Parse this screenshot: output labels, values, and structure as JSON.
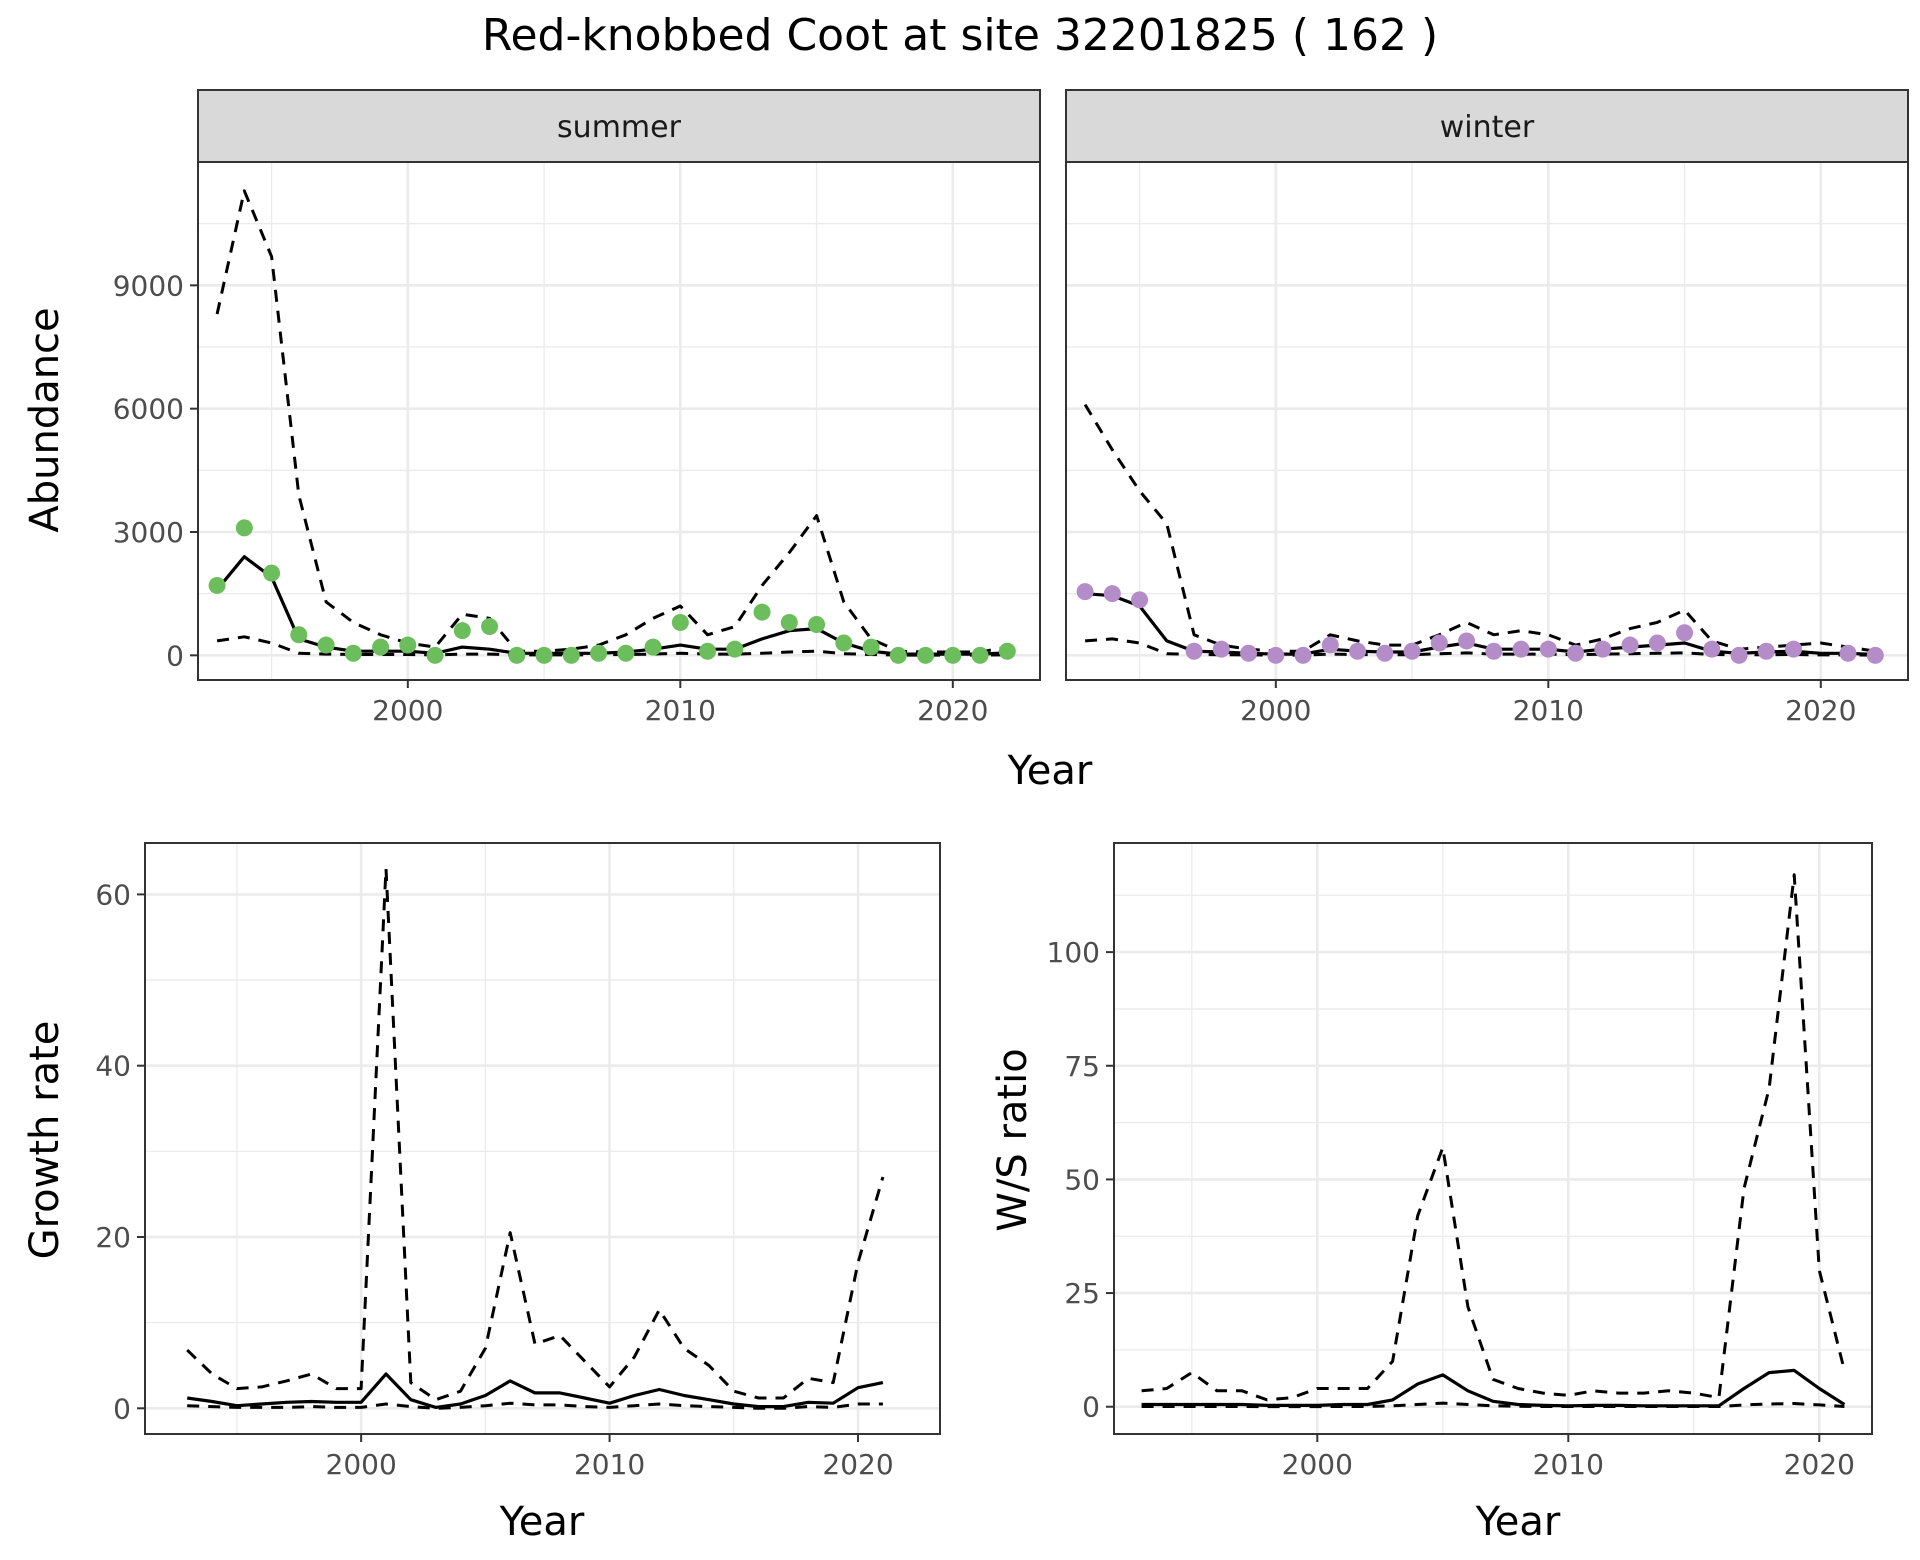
{
  "title": "Red-knobbed Coot at site 32201825 ( 162 )",
  "colors": {
    "summer": "#6BBE5B",
    "winter": "#B48CC8",
    "line": "#000000",
    "strip": "#D9D9D9"
  },
  "chart_data": [
    {
      "type": "line",
      "panel": "summer",
      "facet_label": "summer",
      "xlabel": "Year",
      "ylabel": "Abundance",
      "xlim": [
        1992.3,
        2023.2
      ],
      "ylim": [
        -600,
        12000
      ],
      "xticks": [
        2000,
        2010,
        2020
      ],
      "yticks": [
        0,
        3000,
        6000,
        9000
      ],
      "grid": true,
      "points": {
        "x": [
          1993,
          1994,
          1995,
          1996,
          1997,
          1998,
          1999,
          2000,
          2001,
          2002,
          2003,
          2004,
          2005,
          2006,
          2007,
          2008,
          2009,
          2010,
          2011,
          2012,
          2013,
          2014,
          2015,
          2016,
          2017,
          2018,
          2019,
          2020,
          2021,
          2022
        ],
        "y": [
          1700,
          3100,
          2000,
          500,
          250,
          50,
          200,
          250,
          0,
          600,
          700,
          0,
          0,
          0,
          50,
          50,
          200,
          800,
          100,
          150,
          1050,
          800,
          750,
          300,
          200,
          0,
          0,
          0,
          0,
          100
        ]
      },
      "series": [
        {
          "style": "solid",
          "x": [
            1993,
            1994,
            1995,
            1996,
            1997,
            1998,
            1999,
            2000,
            2001,
            2002,
            2003,
            2004,
            2005,
            2006,
            2007,
            2008,
            2009,
            2010,
            2011,
            2012,
            2013,
            2014,
            2015,
            2016,
            2017,
            2018,
            2019,
            2020,
            2021,
            2022
          ],
          "values": [
            1600,
            2400,
            1900,
            400,
            200,
            100,
            100,
            100,
            50,
            200,
            150,
            50,
            50,
            50,
            50,
            80,
            150,
            250,
            150,
            150,
            400,
            600,
            650,
            300,
            100,
            30,
            30,
            30,
            30,
            60
          ]
        },
        {
          "style": "dashed",
          "x": [
            1993,
            1994,
            1995,
            1996,
            1997,
            1998,
            1999,
            2000,
            2001,
            2002,
            2003,
            2004,
            2005,
            2006,
            2007,
            2008,
            2009,
            2010,
            2011,
            2012,
            2013,
            2014,
            2015,
            2016,
            2017,
            2018,
            2019,
            2020,
            2021,
            2022
          ],
          "values": [
            8300,
            11300,
            9700,
            3900,
            1300,
            800,
            500,
            300,
            200,
            1000,
            900,
            100,
            100,
            150,
            250,
            500,
            900,
            1200,
            500,
            700,
            1700,
            2500,
            3400,
            1300,
            400,
            100,
            80,
            80,
            80,
            200
          ]
        },
        {
          "style": "dashed",
          "x": [
            1993,
            1994,
            1995,
            1996,
            1997,
            1998,
            1999,
            2000,
            2001,
            2002,
            2003,
            2004,
            2005,
            2006,
            2007,
            2008,
            2009,
            2010,
            2011,
            2012,
            2013,
            2014,
            2015,
            2016,
            2017,
            2018,
            2019,
            2020,
            2021,
            2022
          ],
          "values": [
            350,
            450,
            300,
            50,
            30,
            20,
            20,
            20,
            10,
            30,
            30,
            10,
            10,
            10,
            10,
            20,
            30,
            50,
            30,
            30,
            50,
            80,
            100,
            40,
            20,
            5,
            5,
            5,
            5,
            10
          ]
        }
      ]
    },
    {
      "type": "line",
      "panel": "winter",
      "facet_label": "winter",
      "xlabel": "Year",
      "ylabel": "",
      "xlim": [
        1992.3,
        2023.2
      ],
      "ylim": [
        -600,
        12000
      ],
      "xticks": [
        2000,
        2010,
        2020
      ],
      "yticks": [
        0,
        3000,
        6000,
        9000
      ],
      "grid": true,
      "points": {
        "x": [
          1993,
          1994,
          1995,
          1997,
          1998,
          1999,
          2000,
          2001,
          2002,
          2003,
          2004,
          2005,
          2006,
          2007,
          2008,
          2009,
          2010,
          2011,
          2012,
          2013,
          2014,
          2015,
          2016,
          2017,
          2018,
          2019,
          2021,
          2022
        ],
        "y": [
          1550,
          1500,
          1350,
          100,
          150,
          50,
          0,
          0,
          250,
          100,
          50,
          100,
          300,
          350,
          100,
          150,
          150,
          50,
          150,
          250,
          300,
          550,
          150,
          0,
          100,
          150,
          50,
          0
        ]
      },
      "series": [
        {
          "style": "solid",
          "x": [
            1993,
            1994,
            1995,
            1996,
            1997,
            1998,
            1999,
            2000,
            2001,
            2002,
            2003,
            2004,
            2005,
            2006,
            2007,
            2008,
            2009,
            2010,
            2011,
            2012,
            2013,
            2014,
            2015,
            2016,
            2017,
            2018,
            2019,
            2020,
            2021,
            2022
          ],
          "values": [
            1500,
            1450,
            1200,
            350,
            100,
            80,
            50,
            30,
            30,
            150,
            100,
            80,
            80,
            200,
            300,
            150,
            150,
            150,
            80,
            150,
            200,
            250,
            300,
            100,
            50,
            80,
            100,
            50,
            50,
            20
          ]
        },
        {
          "style": "dashed",
          "x": [
            1993,
            1994,
            1995,
            1996,
            1997,
            1998,
            1999,
            2000,
            2001,
            2002,
            2003,
            2004,
            2005,
            2006,
            2007,
            2008,
            2009,
            2010,
            2011,
            2012,
            2013,
            2014,
            2015,
            2016,
            2017,
            2018,
            2019,
            2020,
            2021,
            2022
          ],
          "values": [
            6100,
            5000,
            4000,
            3200,
            500,
            250,
            150,
            100,
            100,
            500,
            350,
            250,
            250,
            500,
            800,
            500,
            600,
            500,
            250,
            400,
            650,
            800,
            1100,
            350,
            150,
            200,
            250,
            300,
            200,
            100
          ]
        },
        {
          "style": "dashed",
          "x": [
            1993,
            1994,
            1995,
            1996,
            1997,
            1998,
            1999,
            2000,
            2001,
            2002,
            2003,
            2004,
            2005,
            2006,
            2007,
            2008,
            2009,
            2010,
            2011,
            2012,
            2013,
            2014,
            2015,
            2016,
            2017,
            2018,
            2019,
            2020,
            2021,
            2022
          ],
          "values": [
            350,
            400,
            300,
            40,
            20,
            15,
            10,
            5,
            5,
            30,
            20,
            15,
            15,
            40,
            60,
            30,
            30,
            30,
            15,
            30,
            40,
            50,
            60,
            20,
            10,
            15,
            20,
            10,
            10,
            5
          ]
        }
      ]
    },
    {
      "type": "line",
      "panel": "growth",
      "xlabel": "Year",
      "ylabel": "Growth rate",
      "xlim": [
        1991.3,
        2023.3
      ],
      "ylim": [
        -3,
        66
      ],
      "xticks": [
        2000,
        2010,
        2020
      ],
      "yticks": [
        0,
        20,
        40,
        60
      ],
      "grid": true,
      "series": [
        {
          "style": "solid",
          "x": [
            1993,
            1994,
            1995,
            1996,
            1997,
            1998,
            1999,
            2000,
            2001,
            2002,
            2003,
            2004,
            2005,
            2006,
            2007,
            2008,
            2009,
            2010,
            2011,
            2012,
            2013,
            2014,
            2015,
            2016,
            2017,
            2018,
            2019,
            2020,
            2021
          ],
          "values": [
            1.2,
            0.8,
            0.3,
            0.5,
            0.7,
            0.8,
            0.7,
            0.7,
            4.0,
            1.0,
            0.1,
            0.5,
            1.5,
            3.2,
            1.8,
            1.8,
            1.2,
            0.6,
            1.5,
            2.2,
            1.5,
            1.0,
            0.5,
            0.2,
            0.2,
            0.7,
            0.6,
            2.4,
            3.0
          ]
        },
        {
          "style": "dashed",
          "x": [
            1993,
            1994,
            1995,
            1996,
            1997,
            1998,
            1999,
            2000,
            2001,
            2002,
            2003,
            2004,
            2005,
            2006,
            2007,
            2008,
            2009,
            2010,
            2011,
            2012,
            2013,
            2014,
            2015,
            2016,
            2017,
            2018,
            2019,
            2020,
            2021
          ],
          "values": [
            6.8,
            4.0,
            2.3,
            2.5,
            3.2,
            4.0,
            2.3,
            2.3,
            63.0,
            3.0,
            1.0,
            2.0,
            7.0,
            20.5,
            7.5,
            8.5,
            5.5,
            2.5,
            6.0,
            11.5,
            7.0,
            5.0,
            2.0,
            1.2,
            1.2,
            3.5,
            3.0,
            17.0,
            27.0
          ]
        },
        {
          "style": "dashed",
          "x": [
            1993,
            1994,
            1995,
            1996,
            1997,
            1998,
            1999,
            2000,
            2001,
            2002,
            2003,
            2004,
            2005,
            2006,
            2007,
            2008,
            2009,
            2010,
            2011,
            2012,
            2013,
            2014,
            2015,
            2016,
            2017,
            2018,
            2019,
            2020,
            2021
          ],
          "values": [
            0.3,
            0.2,
            0.1,
            0.1,
            0.1,
            0.2,
            0.1,
            0.1,
            0.5,
            0.2,
            0.0,
            0.1,
            0.3,
            0.6,
            0.4,
            0.4,
            0.2,
            0.1,
            0.3,
            0.5,
            0.3,
            0.2,
            0.1,
            0.0,
            0.0,
            0.2,
            0.1,
            0.5,
            0.5
          ]
        }
      ]
    },
    {
      "type": "line",
      "panel": "ratio",
      "xlabel": "Year",
      "ylabel": "W/S ratio",
      "xlim": [
        1991.9,
        2022.1
      ],
      "ylim": [
        -6,
        124
      ],
      "xticks": [
        2000,
        2010,
        2020
      ],
      "yticks": [
        0,
        25,
        50,
        75,
        100
      ],
      "grid": true,
      "series": [
        {
          "style": "solid",
          "x": [
            1993,
            1994,
            1995,
            1996,
            1997,
            1998,
            1999,
            2000,
            2001,
            2002,
            2003,
            2004,
            2005,
            2006,
            2007,
            2008,
            2009,
            2010,
            2011,
            2012,
            2013,
            2014,
            2015,
            2016,
            2017,
            2018,
            2019,
            2020,
            2021
          ],
          "values": [
            0.5,
            0.5,
            0.5,
            0.5,
            0.5,
            0.3,
            0.3,
            0.3,
            0.5,
            0.5,
            1.5,
            5.0,
            7.0,
            3.5,
            1.2,
            0.5,
            0.3,
            0.2,
            0.3,
            0.3,
            0.2,
            0.2,
            0.2,
            0.2,
            4.0,
            7.5,
            8.0,
            4.0,
            0.5
          ]
        },
        {
          "style": "dashed",
          "x": [
            1993,
            1994,
            1995,
            1996,
            1997,
            1998,
            1999,
            2000,
            2001,
            2002,
            2003,
            2004,
            2005,
            2006,
            2007,
            2008,
            2009,
            2010,
            2011,
            2012,
            2013,
            2014,
            2015,
            2016,
            2017,
            2018,
            2019,
            2020,
            2021
          ],
          "values": [
            3.5,
            4.0,
            7.5,
            3.5,
            3.5,
            1.5,
            2.0,
            4.0,
            4.0,
            4.0,
            10.0,
            42.0,
            57.0,
            22.0,
            6.0,
            4.0,
            3.0,
            2.5,
            3.5,
            3.0,
            3.0,
            3.5,
            3.0,
            2.0,
            48.0,
            70.0,
            117.0,
            30.0,
            8.0
          ]
        },
        {
          "style": "dashed",
          "x": [
            1993,
            1994,
            1995,
            1996,
            1997,
            1998,
            1999,
            2000,
            2001,
            2002,
            2003,
            2004,
            2005,
            2006,
            2007,
            2008,
            2009,
            2010,
            2011,
            2012,
            2013,
            2014,
            2015,
            2016,
            2017,
            2018,
            2019,
            2020,
            2021
          ],
          "values": [
            0.05,
            0.05,
            0.05,
            0.05,
            0.05,
            0.03,
            0.03,
            0.03,
            0.05,
            0.05,
            0.2,
            0.5,
            0.8,
            0.5,
            0.2,
            0.1,
            0.05,
            0.05,
            0.05,
            0.05,
            0.05,
            0.05,
            0.05,
            0.05,
            0.4,
            0.6,
            0.7,
            0.4,
            0.05
          ]
        }
      ]
    }
  ]
}
